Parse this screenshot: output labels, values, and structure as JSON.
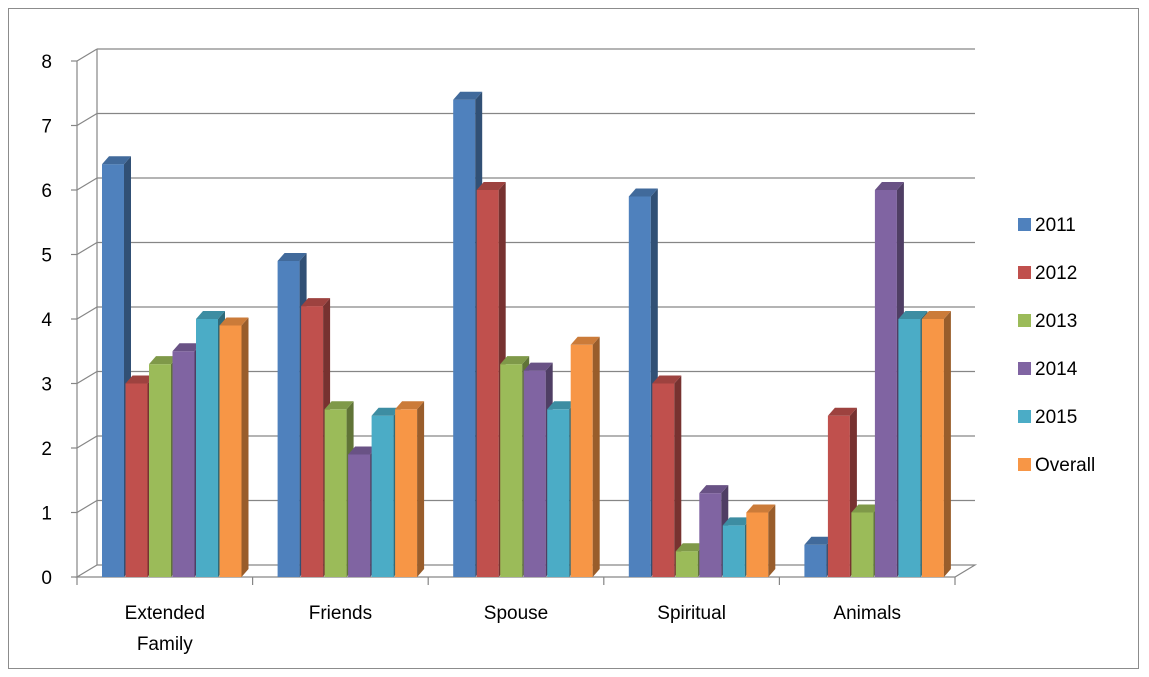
{
  "chart_data": {
    "type": "bar",
    "title": "",
    "xlabel": "",
    "ylabel": "",
    "ylim": [
      0,
      8
    ],
    "yticks": [
      "0",
      "1",
      "2",
      "3",
      "4",
      "5",
      "6",
      "7",
      "8"
    ],
    "categories": [
      "Extended Family",
      "Friends",
      "Spouse",
      "Spiritual",
      "Animals"
    ],
    "series": [
      {
        "name": "2011",
        "color": "#4f81bd",
        "values": [
          6.4,
          4.9,
          7.4,
          5.9,
          0.5
        ]
      },
      {
        "name": "2012",
        "color": "#c0504d",
        "values": [
          3.0,
          4.2,
          6.0,
          3.0,
          2.5
        ]
      },
      {
        "name": "2013",
        "color": "#9bbb59",
        "values": [
          3.3,
          2.6,
          3.3,
          0.4,
          1.0
        ]
      },
      {
        "name": "2014",
        "color": "#8064a2",
        "values": [
          3.5,
          1.9,
          3.2,
          1.3,
          6.0
        ]
      },
      {
        "name": "2015",
        "color": "#4bacc6",
        "values": [
          4.0,
          2.5,
          2.6,
          0.8,
          4.0
        ]
      },
      {
        "name": "Overall",
        "color": "#f79646",
        "values": [
          3.9,
          2.6,
          3.6,
          1.0,
          4.0
        ]
      }
    ],
    "grid": true,
    "legend": "right",
    "style": "3d-clustered-column"
  }
}
